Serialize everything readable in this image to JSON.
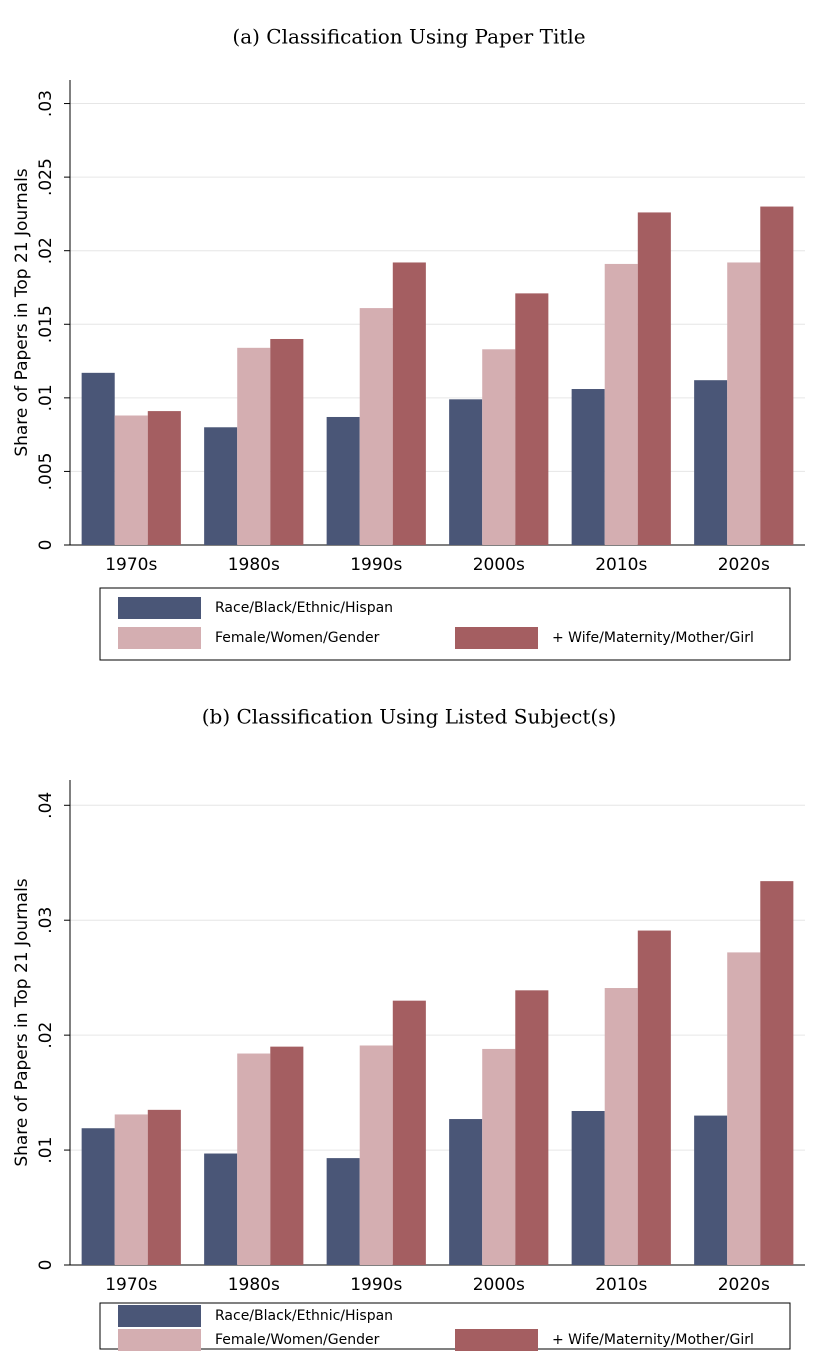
{
  "chart_data": [
    {
      "type": "bar",
      "title": "(a) Classification Using Paper Title",
      "y_label": "Share of Papers in Top 21 Journals",
      "categories": [
        "1970s",
        "1980s",
        "1990s",
        "2000s",
        "2010s",
        "2020s"
      ],
      "series": [
        {
          "name": "Race/Black/Ethnic/Hispan",
          "color": "#4a5677",
          "values": [
            0.0117,
            0.008,
            0.0087,
            0.0099,
            0.0106,
            0.0112
          ]
        },
        {
          "name": "Female/Women/Gender",
          "color": "#d4aeb1",
          "values": [
            0.0088,
            0.0134,
            0.0161,
            0.0133,
            0.0191,
            0.0192
          ]
        },
        {
          "name": "+ Wife/Maternity/Mother/Girl",
          "color": "#a45e61",
          "values": [
            0.0091,
            0.014,
            0.0192,
            0.0171,
            0.0226,
            0.023
          ]
        }
      ],
      "ylim": [
        0,
        0.0316
      ],
      "yticks": [
        0,
        {
          "value": 0.005,
          "label": ".005"
        },
        {
          "value": 0.01,
          "label": ".01"
        },
        {
          "value": 0.015,
          "label": ".015"
        },
        {
          "value": 0.02,
          "label": ".02"
        },
        {
          "value": 0.025,
          "label": ".025"
        },
        {
          "value": 0.03,
          "label": ".03"
        }
      ],
      "grid": true
    },
    {
      "type": "bar",
      "title": "(b) Classification Using Listed Subject(s)",
      "y_label": "Share of Papers in Top 21 Journals",
      "categories": [
        "1970s",
        "1980s",
        "1990s",
        "2000s",
        "2010s",
        "2020s"
      ],
      "series": [
        {
          "name": "Race/Black/Ethnic/Hispan",
          "color": "#4a5677",
          "values": [
            0.0119,
            0.0097,
            0.0093,
            0.0127,
            0.0134,
            0.013
          ]
        },
        {
          "name": "Female/Women/Gender",
          "color": "#d4aeb1",
          "values": [
            0.0131,
            0.0184,
            0.0191,
            0.0188,
            0.0241,
            0.0272
          ]
        },
        {
          "name": "+ Wife/Maternity/Mother/Girl",
          "color": "#a45e61",
          "values": [
            0.0135,
            0.019,
            0.023,
            0.0239,
            0.0291,
            0.0334
          ]
        }
      ],
      "ylim": [
        0,
        0.0422
      ],
      "yticks": [
        0,
        {
          "value": 0.01,
          "label": ".01"
        },
        {
          "value": 0.02,
          "label": ".02"
        },
        {
          "value": 0.03,
          "label": ".03"
        },
        {
          "value": 0.04,
          "label": ".04"
        }
      ],
      "grid": true
    }
  ]
}
